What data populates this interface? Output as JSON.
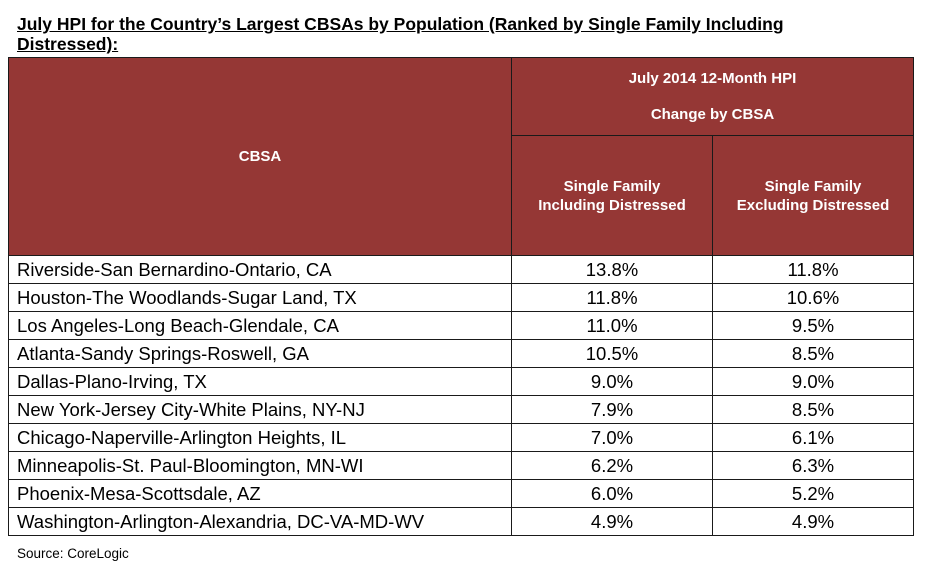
{
  "title": "July HPI for the Country’s Largest CBSAs by Population (Ranked by Single Family Including Distressed):",
  "table": {
    "header_top_line1": "July 2014 12-Month HPI",
    "header_top_line2": "Change by CBSA",
    "header_cbsa": "CBSA",
    "col_incl_line1": "Single Family",
    "col_incl_line2": "Including Distressed",
    "col_excl_line1": "Single Family",
    "col_excl_line2": "Excluding Distressed",
    "rows": [
      {
        "cbsa": "Riverside-San Bernardino-Ontario, CA",
        "incl": "13.8%",
        "excl": "11.8%"
      },
      {
        "cbsa": "Houston-The Woodlands-Sugar Land, TX",
        "incl": "11.8%",
        "excl": "10.6%"
      },
      {
        "cbsa": "Los Angeles-Long Beach-Glendale, CA",
        "incl": "11.0%",
        "excl": "9.5%"
      },
      {
        "cbsa": "Atlanta-Sandy Springs-Roswell, GA",
        "incl": "10.5%",
        "excl": "8.5%"
      },
      {
        "cbsa": "Dallas-Plano-Irving, TX",
        "incl": "9.0%",
        "excl": "9.0%"
      },
      {
        "cbsa": "New York-Jersey City-White Plains, NY-NJ",
        "incl": "7.9%",
        "excl": "8.5%"
      },
      {
        "cbsa": "Chicago-Naperville-Arlington Heights, IL",
        "incl": "7.0%",
        "excl": "6.1%"
      },
      {
        "cbsa": "Minneapolis-St. Paul-Bloomington, MN-WI",
        "incl": "6.2%",
        "excl": "6.3%"
      },
      {
        "cbsa": "Phoenix-Mesa-Scottsdale, AZ",
        "incl": "6.0%",
        "excl": "5.2%"
      },
      {
        "cbsa": "Washington-Arlington-Alexandria, DC-VA-MD-WV",
        "incl": "4.9%",
        "excl": "4.9%"
      }
    ]
  },
  "source": "Source: CoreLogic",
  "colors": {
    "header_bg": "#953735",
    "header_text": "#ffffff"
  }
}
